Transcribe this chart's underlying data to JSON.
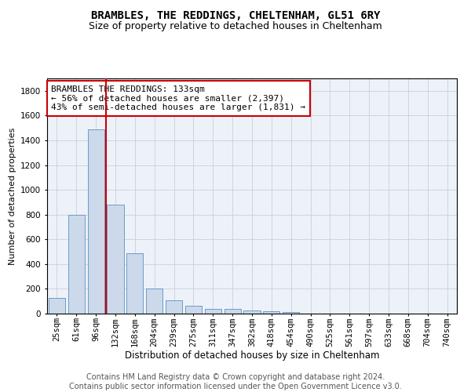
{
  "title": "BRAMBLES, THE REDDINGS, CHELTENHAM, GL51 6RY",
  "subtitle": "Size of property relative to detached houses in Cheltenham",
  "xlabel": "Distribution of detached houses by size in Cheltenham",
  "ylabel": "Number of detached properties",
  "bar_color": "#ccd9ea",
  "bar_edge_color": "#5a8fc3",
  "grid_color": "#c8d0dc",
  "bg_color": "#edf2f9",
  "categories": [
    "25sqm",
    "61sqm",
    "96sqm",
    "132sqm",
    "168sqm",
    "204sqm",
    "239sqm",
    "275sqm",
    "311sqm",
    "347sqm",
    "382sqm",
    "418sqm",
    "454sqm",
    "490sqm",
    "525sqm",
    "561sqm",
    "597sqm",
    "633sqm",
    "668sqm",
    "704sqm",
    "740sqm"
  ],
  "values": [
    125,
    800,
    1490,
    880,
    490,
    205,
    105,
    65,
    40,
    35,
    28,
    22,
    12,
    0,
    0,
    0,
    0,
    0,
    0,
    0,
    0
  ],
  "ylim": [
    0,
    1900
  ],
  "yticks": [
    0,
    200,
    400,
    600,
    800,
    1000,
    1200,
    1400,
    1600,
    1800
  ],
  "vline_color": "#cc0000",
  "vline_position": 2.5,
  "annotation_text": "BRAMBLES THE REDDINGS: 133sqm\n← 56% of detached houses are smaller (2,397)\n43% of semi-detached houses are larger (1,831) →",
  "annotation_box_color": "#ffffff",
  "annotation_box_edge": "#cc0000",
  "footer": "Contains HM Land Registry data © Crown copyright and database right 2024.\nContains public sector information licensed under the Open Government Licence v3.0.",
  "title_fontsize": 10,
  "subtitle_fontsize": 9,
  "annotation_fontsize": 8,
  "footer_fontsize": 7,
  "ylabel_fontsize": 8,
  "xlabel_fontsize": 8.5,
  "tick_fontsize": 7.5
}
